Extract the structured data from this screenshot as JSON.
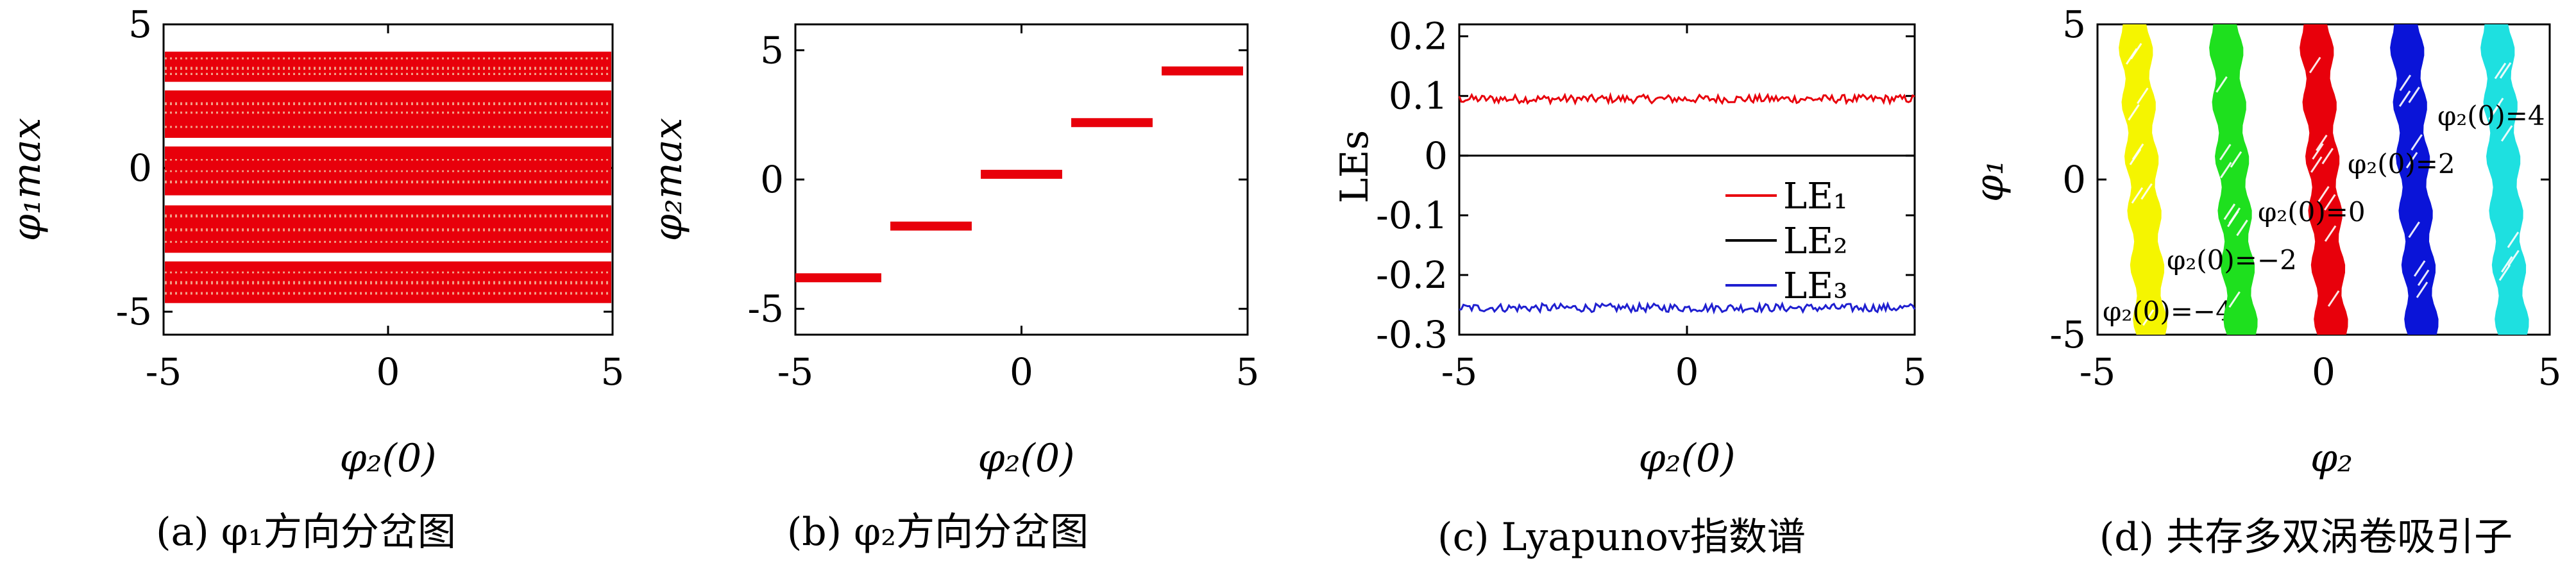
{
  "figure": {
    "panels": [
      {
        "id": "a",
        "caption": "(a) φ₁方向分岔图",
        "ylabel": "φ₁max",
        "xlabel": "φ₂(0)"
      },
      {
        "id": "b",
        "caption": "(b) φ₂方向分岔图",
        "ylabel": "φ₂max",
        "xlabel": "φ₂(0)"
      },
      {
        "id": "c",
        "caption": "(c) Lyapunov指数谱",
        "ylabel": "LEs",
        "xlabel": "φ₂(0)"
      },
      {
        "id": "d",
        "caption": "(d) 共存多双涡卷吸引子",
        "ylabel": "φ₁",
        "xlabel": "φ₂"
      }
    ]
  },
  "chart_data": [
    {
      "id": "a",
      "type": "scatter",
      "title": "",
      "xlabel": "φ₂(0)",
      "ylabel": "φ₁max",
      "xlim": [
        -5,
        5
      ],
      "ylim": [
        -5.8,
        5
      ],
      "xticks": [
        "-5",
        "0",
        "5"
      ],
      "yticks": [
        "-5",
        "0",
        "5"
      ],
      "color": "#e8000b",
      "bands": [
        {
          "y0": -4.7,
          "y1": -3.25
        },
        {
          "y0": -2.95,
          "y1": -1.3
        },
        {
          "y0": -0.95,
          "y1": 0.75
        },
        {
          "y0": 1.05,
          "y1": 2.7
        },
        {
          "y0": 3.0,
          "y1": 4.05
        }
      ]
    },
    {
      "id": "b",
      "type": "scatter",
      "title": "",
      "xlabel": "φ₂(0)",
      "ylabel": "φ₂max",
      "xlim": [
        -5,
        5
      ],
      "ylim": [
        -6,
        6
      ],
      "xticks": [
        "-5",
        "0",
        "5"
      ],
      "yticks": [
        "-5",
        "0",
        "5"
      ],
      "color": "#e8000b",
      "steps": [
        {
          "x0": -5,
          "x1": -3,
          "y": -3.8
        },
        {
          "x0": -3,
          "x1": -1,
          "y": -1.8
        },
        {
          "x0": -1,
          "x1": 1,
          "y": 0.2
        },
        {
          "x0": 1,
          "x1": 3,
          "y": 2.2
        },
        {
          "x0": 3,
          "x1": 5,
          "y": 4.2
        }
      ]
    },
    {
      "id": "c",
      "type": "line",
      "title": "",
      "xlabel": "φ₂(0)",
      "ylabel": "LEs",
      "xlim": [
        -5,
        5
      ],
      "ylim": [
        -0.3,
        0.22
      ],
      "xticks": [
        "-5",
        "0",
        "5"
      ],
      "yticks": [
        "0.2",
        "0.1",
        "0",
        "-0.1",
        "-0.2",
        "-0.3"
      ],
      "legend_position": "right",
      "series": [
        {
          "name": "LE₁",
          "mean": 0.095,
          "color": "#e8000b"
        },
        {
          "name": "LE₂",
          "mean": 0.0,
          "color": "#000000"
        },
        {
          "name": "LE₃",
          "mean": -0.255,
          "color": "#1f1fd0"
        }
      ]
    },
    {
      "id": "d",
      "type": "scatter",
      "title": "",
      "xlabel": "φ₂",
      "ylabel": "φ₁",
      "xlim": [
        -5,
        5
      ],
      "ylim": [
        -5,
        5
      ],
      "xticks": [
        "-5",
        "0",
        "5"
      ],
      "yticks": [
        "-5",
        "0",
        "5"
      ],
      "attractors": [
        {
          "label": "φ₂(0)=−4",
          "center": -4,
          "color": "#f5f500"
        },
        {
          "label": "φ₂(0)=−2",
          "center": -2,
          "color": "#1ee01e"
        },
        {
          "label": "φ₂(0)=0",
          "center": 0,
          "color": "#e8000b"
        },
        {
          "label": "φ₂(0)=2",
          "center": 2,
          "color": "#0a14d8"
        },
        {
          "label": "φ₂(0)=4",
          "center": 4,
          "color": "#1ee0e0"
        }
      ]
    }
  ]
}
